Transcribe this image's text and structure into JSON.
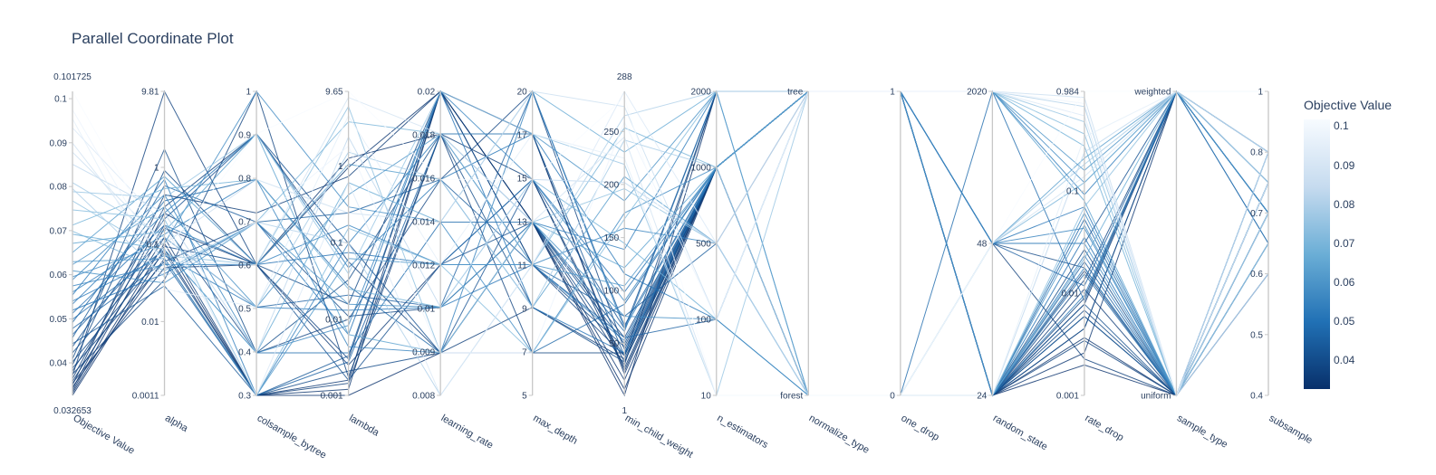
{
  "chart_data": {
    "type": "parallel_coordinates",
    "title": "Parallel Coordinate Plot",
    "colorbar": {
      "title": "Objective Value",
      "range": [
        0.032653,
        0.101725
      ],
      "ticks": [
        "0.1",
        "0.09",
        "0.08",
        "0.07",
        "0.06",
        "0.05",
        "0.04"
      ],
      "tick_values": [
        0.1,
        0.09,
        0.08,
        0.07,
        0.06,
        0.05,
        0.04
      ],
      "colorscale": [
        "#08306b",
        "#2171b5",
        "#6baed6",
        "#c6dbef",
        "#f7fbff"
      ]
    },
    "dimensions": [
      {
        "label": "Objective Value",
        "range_labels": [
          "0.032653",
          "0.101725"
        ],
        "ticks": [
          "0.04",
          "0.05",
          "0.06",
          "0.07",
          "0.08",
          "0.09",
          "0.1"
        ],
        "tick_pos": [
          0.107,
          0.252,
          0.397,
          0.542,
          0.687,
          0.831,
          0.976
        ]
      },
      {
        "label": "alpha",
        "range_labels": [
          "",
          ""
        ],
        "ticks": [
          "0.0011",
          "0.01",
          "0.1",
          "1",
          "9.81"
        ],
        "tick_pos": [
          0,
          0.243,
          0.497,
          0.75,
          1
        ]
      },
      {
        "label": "colsample_bytree",
        "range_labels": [
          "",
          ""
        ],
        "ticks": [
          "0.3",
          "0.4",
          "0.5",
          "0.6",
          "0.7",
          "0.8",
          "0.9",
          "1"
        ],
        "tick_pos": [
          0,
          0.143,
          0.286,
          0.429,
          0.571,
          0.714,
          0.857,
          1
        ]
      },
      {
        "label": "lambda",
        "range_labels": [
          "",
          ""
        ],
        "ticks": [
          "0.001",
          "0.01",
          "0.1",
          "1",
          "9.65"
        ],
        "tick_pos": [
          0,
          0.25,
          0.503,
          0.754,
          1
        ]
      },
      {
        "label": "learning_rate",
        "range_labels": [
          "",
          ""
        ],
        "ticks": [
          "0.008",
          "0.009",
          "0.01",
          "0.012",
          "0.014",
          "0.016",
          "0.018",
          "0.02"
        ],
        "tick_pos": [
          0,
          0.143,
          0.286,
          0.429,
          0.571,
          0.714,
          0.857,
          1
        ]
      },
      {
        "label": "max_depth",
        "range_labels": [
          "",
          ""
        ],
        "ticks": [
          "5",
          "7",
          "9",
          "11",
          "13",
          "15",
          "17",
          "20"
        ],
        "tick_pos": [
          0,
          0.143,
          0.286,
          0.429,
          0.571,
          0.714,
          0.857,
          1
        ]
      },
      {
        "label": "min_child_weight",
        "range_labels": [
          "1",
          "288"
        ],
        "ticks": [
          "50",
          "100",
          "150",
          "200",
          "250"
        ],
        "tick_pos": [
          0.171,
          0.345,
          0.519,
          0.694,
          0.868
        ]
      },
      {
        "label": "n_estimators",
        "range_labels": [
          "",
          ""
        ],
        "ticks": [
          "10",
          "100",
          "500",
          "1000",
          "2000"
        ],
        "tick_pos": [
          0,
          0.25,
          0.5,
          0.75,
          1
        ]
      },
      {
        "label": "normalize_type",
        "range_labels": [
          "",
          ""
        ],
        "ticks": [
          "forest",
          "tree"
        ],
        "tick_pos": [
          0,
          1
        ]
      },
      {
        "label": "one_drop",
        "range_labels": [
          "",
          ""
        ],
        "ticks": [
          "0",
          "1"
        ],
        "tick_pos": [
          0,
          1
        ]
      },
      {
        "label": "random_state",
        "range_labels": [
          "",
          ""
        ],
        "ticks": [
          "24",
          "48",
          "2020"
        ],
        "tick_pos": [
          0,
          0.5,
          1
        ]
      },
      {
        "label": "rate_drop",
        "range_labels": [
          "",
          ""
        ],
        "ticks": [
          "0.001",
          "0.01",
          "0.1",
          "0.984"
        ],
        "tick_pos": [
          0,
          0.337,
          0.672,
          1
        ]
      },
      {
        "label": "sample_type",
        "range_labels": [
          "",
          ""
        ],
        "ticks": [
          "uniform",
          "weighted"
        ],
        "tick_pos": [
          0,
          1
        ]
      },
      {
        "label": "subsample",
        "range_labels": [
          "",
          ""
        ],
        "ticks": [
          "0.4",
          "0.5",
          "0.6",
          "0.7",
          "0.8",
          "1"
        ],
        "tick_pos": [
          0,
          0.2,
          0.4,
          0.6,
          0.8,
          1
        ]
      }
    ],
    "trials": [
      {
        "v": 0.0327,
        "p": [
          0,
          0.48,
          0,
          0,
          0.14,
          0.57,
          0,
          1,
          1,
          1,
          0,
          0.1,
          0,
          0.5
        ]
      },
      {
        "v": 0.0331,
        "p": [
          0.007,
          0.5,
          0,
          0.02,
          1,
          0.57,
          0.02,
          0.75,
          1,
          1,
          0,
          0.19,
          0,
          0.6
        ]
      },
      {
        "v": 0.0335,
        "p": [
          0.013,
          0.55,
          0.43,
          0.75,
          1,
          0.57,
          0.05,
          0.75,
          1,
          1,
          0,
          0.3,
          1,
          0.8
        ]
      },
      {
        "v": 0.034,
        "p": [
          0.02,
          0.6,
          0.43,
          0.78,
          0.86,
          0.86,
          0.07,
          0.75,
          1,
          1,
          0,
          0.14,
          1,
          0.7
        ]
      },
      {
        "v": 0.0345,
        "p": [
          0.027,
          0.45,
          0,
          0.05,
          1,
          0.86,
          0.08,
          0.75,
          0,
          0,
          0,
          0.22,
          1,
          0.6
        ]
      },
      {
        "v": 0.035,
        "p": [
          0.034,
          0.66,
          0.6,
          0.72,
          1,
          0.57,
          0.1,
          1,
          1,
          1,
          0,
          0.26,
          0,
          0.5
        ]
      },
      {
        "v": 0.0354,
        "p": [
          0.04,
          0.42,
          0.43,
          0.1,
          0.43,
          0.71,
          0.11,
          0.75,
          1,
          1,
          0,
          0.35,
          0,
          0.4
        ]
      },
      {
        "v": 0.036,
        "p": [
          0.046,
          0.52,
          0,
          0.04,
          0.86,
          0.71,
          0.09,
          0.75,
          1,
          1,
          0.5,
          0.12,
          0,
          0.5
        ]
      },
      {
        "v": 0.0365,
        "p": [
          0.055,
          0.62,
          0.86,
          0.44,
          0.14,
          0.29,
          0.12,
          0.75,
          1,
          1,
          0,
          0.32,
          1,
          0.6
        ]
      },
      {
        "v": 0.037,
        "p": [
          0.065,
          1,
          0.43,
          0.12,
          1,
          0.43,
          0.13,
          0.75,
          1,
          1,
          0,
          0.41,
          0,
          0.7
        ]
      },
      {
        "v": 0.0375,
        "p": [
          0.07,
          0.38,
          1,
          0.06,
          0.86,
          0.14,
          0.14,
          0.75,
          0,
          0,
          0,
          0.18,
          0,
          0.6
        ]
      },
      {
        "v": 0.038,
        "p": [
          0.08,
          0.56,
          0.14,
          0.25,
          0.71,
          1,
          0.15,
          0.75,
          1,
          1,
          0,
          0.38,
          1,
          0.8
        ]
      },
      {
        "v": 0.0385,
        "p": [
          0.09,
          0.44,
          0.57,
          0.26,
          0.29,
          0.57,
          0.19,
          0.75,
          1,
          1,
          0,
          0.28,
          0,
          0.7
        ]
      },
      {
        "v": 0.039,
        "p": [
          0.1,
          0.74,
          0.43,
          0.3,
          1,
          0.43,
          0.16,
          0.75,
          1,
          1,
          0.5,
          0.42,
          0,
          0.6
        ]
      },
      {
        "v": 0.0395,
        "p": [
          0.11,
          0.47,
          0,
          0.08,
          0.14,
          0.57,
          0.13,
          1,
          1,
          1,
          0,
          0.22,
          1,
          0.5
        ]
      },
      {
        "v": 0.04,
        "p": [
          0.12,
          0.81,
          0.14,
          0.38,
          0.86,
          0.29,
          0.11,
          0.75,
          1,
          1,
          0,
          0.48,
          0,
          0.7
        ]
      },
      {
        "v": 0.041,
        "p": [
          0.14,
          0.49,
          0.43,
          0.05,
          0.43,
          0.57,
          0.17,
          0.75,
          0,
          0,
          0,
          0.3,
          0,
          0.6
        ]
      },
      {
        "v": 0.042,
        "p": [
          0.16,
          0.58,
          0.86,
          0.5,
          0.14,
          0.71,
          0.22,
          1,
          1,
          1,
          0.5,
          0.5,
          1,
          0.7
        ]
      },
      {
        "v": 0.043,
        "p": [
          0.17,
          0.36,
          0,
          0.13,
          1,
          0.86,
          0.13,
          0.75,
          1,
          1,
          0,
          0.26,
          0,
          0.6
        ]
      },
      {
        "v": 0.044,
        "p": [
          0.19,
          0.69,
          0.57,
          0.6,
          0.71,
          0.43,
          0.26,
          0.5,
          1,
          1,
          0,
          0.44,
          0,
          0.8
        ]
      },
      {
        "v": 0.045,
        "p": [
          0.2,
          0.52,
          0.29,
          0.33,
          0.29,
          1,
          0.23,
          0.75,
          1,
          1,
          0.5,
          0.36,
          1,
          0.6
        ]
      },
      {
        "v": 0.046,
        "p": [
          0.22,
          0.44,
          0,
          0.11,
          0.86,
          0.43,
          0.19,
          0.25,
          1,
          1,
          0,
          0.58,
          0,
          0.7
        ]
      },
      {
        "v": 0.047,
        "p": [
          0.24,
          0.64,
          0.71,
          0.36,
          0.14,
          0.14,
          0.3,
          0.75,
          1,
          1,
          0,
          0.4,
          0,
          0.5
        ]
      },
      {
        "v": 0.048,
        "p": [
          0.25,
          0.48,
          0.14,
          0.14,
          0.57,
          0.57,
          0.21,
          1,
          0,
          0,
          1,
          0.31,
          1,
          0.6
        ]
      },
      {
        "v": 0.049,
        "p": [
          0.27,
          0.56,
          0.43,
          0.47,
          0.43,
          0.71,
          0.34,
          0.75,
          1,
          1,
          0,
          0.52,
          0,
          0.4
        ]
      },
      {
        "v": 0.05,
        "p": [
          0.28,
          0.4,
          0.57,
          0.2,
          1,
          0.29,
          0.14,
          0.75,
          1,
          1,
          0.5,
          0.62,
          0,
          0.8
        ]
      },
      {
        "v": 0.051,
        "p": [
          0.3,
          0.6,
          0.86,
          0.42,
          0.71,
          0.86,
          0.4,
          0.25,
          0,
          0,
          0,
          0.33,
          1,
          0.6
        ]
      },
      {
        "v": 0.052,
        "p": [
          0.31,
          0.46,
          0.29,
          0.28,
          0.29,
          0.43,
          0.18,
          0.75,
          1,
          1,
          0,
          0.46,
          0,
          0.7
        ]
      },
      {
        "v": 0.053,
        "p": [
          0.33,
          0.71,
          0,
          0.5,
          0.86,
          0.57,
          0.48,
          1,
          1,
          1,
          1,
          0.66,
          1,
          0.5
        ]
      },
      {
        "v": 0.054,
        "p": [
          0.34,
          0.53,
          0.71,
          0.16,
          0.14,
          1,
          0.22,
          0.75,
          1,
          1,
          0.5,
          0.55,
          0,
          0.6
        ]
      },
      {
        "v": 0.055,
        "p": [
          0.36,
          0.43,
          0.43,
          0.56,
          0.43,
          0.43,
          0.55,
          0.5,
          0,
          0,
          0,
          0.42,
          0,
          0.7
        ]
      },
      {
        "v": 0.056,
        "p": [
          0.38,
          0.66,
          0.14,
          0.23,
          1,
          0.71,
          0.31,
          0.75,
          1,
          1,
          1,
          0.7,
          1,
          0.6
        ]
      },
      {
        "v": 0.057,
        "p": [
          0.39,
          0.5,
          1,
          0.62,
          0.57,
          0.14,
          0.6,
          0.75,
          1,
          1,
          0.5,
          0.5,
          0,
          0.8
        ]
      },
      {
        "v": 0.058,
        "p": [
          0.41,
          0.37,
          0.57,
          0.3,
          0.29,
          0.57,
          0.26,
          0.25,
          0,
          0,
          0,
          0.6,
          0,
          0.7
        ]
      },
      {
        "v": 0.059,
        "p": [
          0.43,
          0.62,
          0.29,
          0.66,
          0.86,
          0.86,
          0.64,
          1,
          1,
          1,
          1,
          0.74,
          1,
          0.6
        ]
      },
      {
        "v": 0.06,
        "p": [
          0.44,
          0.45,
          0,
          0.45,
          0.43,
          0.43,
          0.36,
          0.75,
          1,
          1,
          0,
          0.56,
          0,
          0.5
        ]
      },
      {
        "v": 0.062,
        "p": [
          0.47,
          0.72,
          0.43,
          0.76,
          0.71,
          0.29,
          0.72,
          0.5,
          0,
          0,
          0.5,
          0.78,
          1,
          0.7
        ]
      },
      {
        "v": 0.064,
        "p": [
          0.5,
          0.54,
          0.86,
          0.2,
          0.14,
          0.57,
          0.42,
          0.75,
          1,
          1,
          1,
          0.64,
          0,
          0.6
        ]
      },
      {
        "v": 0.066,
        "p": [
          0.53,
          0.48,
          0.14,
          0.7,
          0.57,
          1,
          0.8,
          1,
          0,
          0,
          0,
          0.45,
          1,
          0.8
        ]
      },
      {
        "v": 0.068,
        "p": [
          0.56,
          0.68,
          0.71,
          0.35,
          0.29,
          0.71,
          0.5,
          0.25,
          1,
          1,
          1,
          0.82,
          0,
          0.5
        ]
      },
      {
        "v": 0.07,
        "p": [
          0.54,
          0.41,
          0.57,
          0.9,
          0.86,
          0.43,
          0.88,
          0.75,
          0,
          0,
          0.5,
          0.7,
          1,
          0.7
        ]
      },
      {
        "v": 0.072,
        "p": [
          0.61,
          0.58,
          0,
          0.55,
          0.43,
          0.14,
          0.58,
          1,
          1,
          1,
          1,
          0.86,
          0,
          0.6
        ]
      },
      {
        "v": 0.074,
        "p": [
          0.64,
          0.46,
          0.43,
          0.95,
          0.14,
          0.57,
          0.68,
          0.5,
          0,
          0,
          0,
          0.62,
          1,
          0.8
        ]
      },
      {
        "v": 0.076,
        "p": [
          0.67,
          0.65,
          0.86,
          0.4,
          1,
          0.86,
          0.76,
          0,
          1,
          1,
          1,
          0.9,
          0,
          0.5
        ]
      },
      {
        "v": 0.078,
        "p": [
          0.7,
          0.52,
          0.29,
          0.8,
          0.71,
          0.29,
          0.84,
          0.75,
          0,
          0,
          0.5,
          0.76,
          1,
          0.7
        ]
      },
      {
        "v": 0.08,
        "p": [
          0.68,
          0.39,
          0.57,
          0.5,
          0,
          0.43,
          0.92,
          1,
          1,
          1,
          1,
          0.95,
          0,
          0.6
        ]
      },
      {
        "v": 0.083,
        "p": [
          0.76,
          0.6,
          0.14,
          0.85,
          0.29,
          0.71,
          0.7,
          0.5,
          0,
          0,
          0,
          0.8,
          1,
          0.8
        ]
      },
      {
        "v": 0.086,
        "p": [
          0.8,
          0.5,
          0.71,
          0.6,
          0.57,
          1,
          0.95,
          0.25,
          1,
          1,
          1,
          0.98,
          0,
          0.4
        ]
      },
      {
        "v": 0.089,
        "p": [
          0.83,
          0.44,
          0.43,
          0.98,
          0.86,
          0.57,
          0.85,
          0,
          0,
          0,
          0.5,
          0.72,
          1,
          1
        ]
      },
      {
        "v": 0.092,
        "p": [
          0.88,
          0.56,
          0,
          0.7,
          0,
          0.43,
          1,
          0.5,
          1,
          1,
          1,
          0.92,
          0,
          0.8
        ]
      },
      {
        "v": 0.095,
        "p": [
          0.91,
          0.35,
          0.29,
          0.92,
          0.43,
          0.86,
          0.78,
          0,
          0,
          0,
          0,
          0.85,
          1,
          1
        ]
      },
      {
        "v": 0.098,
        "p": [
          0.94,
          0.42,
          0.57,
          0.82,
          0.14,
          0.14,
          0.9,
          0.25,
          1,
          1,
          1,
          0.96,
          0,
          0.7
        ]
      },
      {
        "v": 0.1017,
        "p": [
          1,
          0.47,
          0.86,
          1,
          0.71,
          0.71,
          0.98,
          0,
          0,
          0,
          0.5,
          1,
          1,
          1
        ]
      }
    ]
  }
}
